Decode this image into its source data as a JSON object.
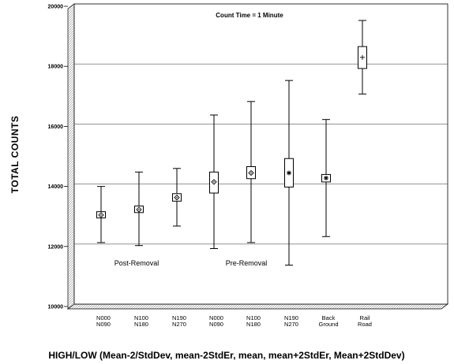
{
  "chart_data": {
    "type": "box",
    "title": "",
    "annotation": "Count Time = 1 Minute",
    "ylabel": "TOTAL COUNTS",
    "xlabel": "HIGH/LOW (Mean-2/StdDev, mean-2StdEr, mean, mean+2StdEr, Mean+2StdDev)",
    "ylim": [
      10000,
      20000
    ],
    "yticks": [
      "10000",
      "12000",
      "14000",
      "16000",
      "18000",
      "20000"
    ],
    "ytick_values": [
      10000,
      12000,
      14000,
      16000,
      18000,
      20000
    ],
    "grid": true,
    "categories": [
      {
        "line1": "N000",
        "line2": "N090",
        "low": 12050,
        "box_low": 12870,
        "mean": 12970,
        "box_high": 13080,
        "high": 13920,
        "marker": "diamond"
      },
      {
        "line1": "N100",
        "line2": "N180",
        "low": 11950,
        "box_low": 13050,
        "mean": 13150,
        "box_high": 13270,
        "high": 14400,
        "marker": "diamond"
      },
      {
        "line1": "N190",
        "line2": "N270",
        "low": 12600,
        "box_low": 13430,
        "mean": 13550,
        "box_high": 13680,
        "high": 14520,
        "marker": "diamond"
      },
      {
        "line1": "N000",
        "line2": "N090",
        "low": 11850,
        "box_low": 13700,
        "mean": 14070,
        "box_high": 14400,
        "high": 16300,
        "marker": "diamond"
      },
      {
        "line1": "N100",
        "line2": "N180",
        "low": 12050,
        "box_low": 14180,
        "mean": 14370,
        "box_high": 14580,
        "high": 16750,
        "marker": "diamond"
      },
      {
        "line1": "N190",
        "line2": "N270",
        "low": 11300,
        "box_low": 13900,
        "mean": 14370,
        "box_high": 14850,
        "high": 17450,
        "marker": "star"
      },
      {
        "line1": "Back",
        "line2": "Ground",
        "low": 12250,
        "box_low": 14070,
        "mean": 14200,
        "box_high": 14320,
        "high": 16150,
        "marker": "star"
      },
      {
        "line1": "Rail",
        "line2": "Road",
        "low": 17000,
        "box_low": 17850,
        "mean": 18220,
        "box_high": 18580,
        "high": 19450,
        "marker": "plus"
      }
    ],
    "groups": [
      {
        "label": "Post-Removal"
      },
      {
        "label": "Pre-Removal"
      }
    ]
  }
}
